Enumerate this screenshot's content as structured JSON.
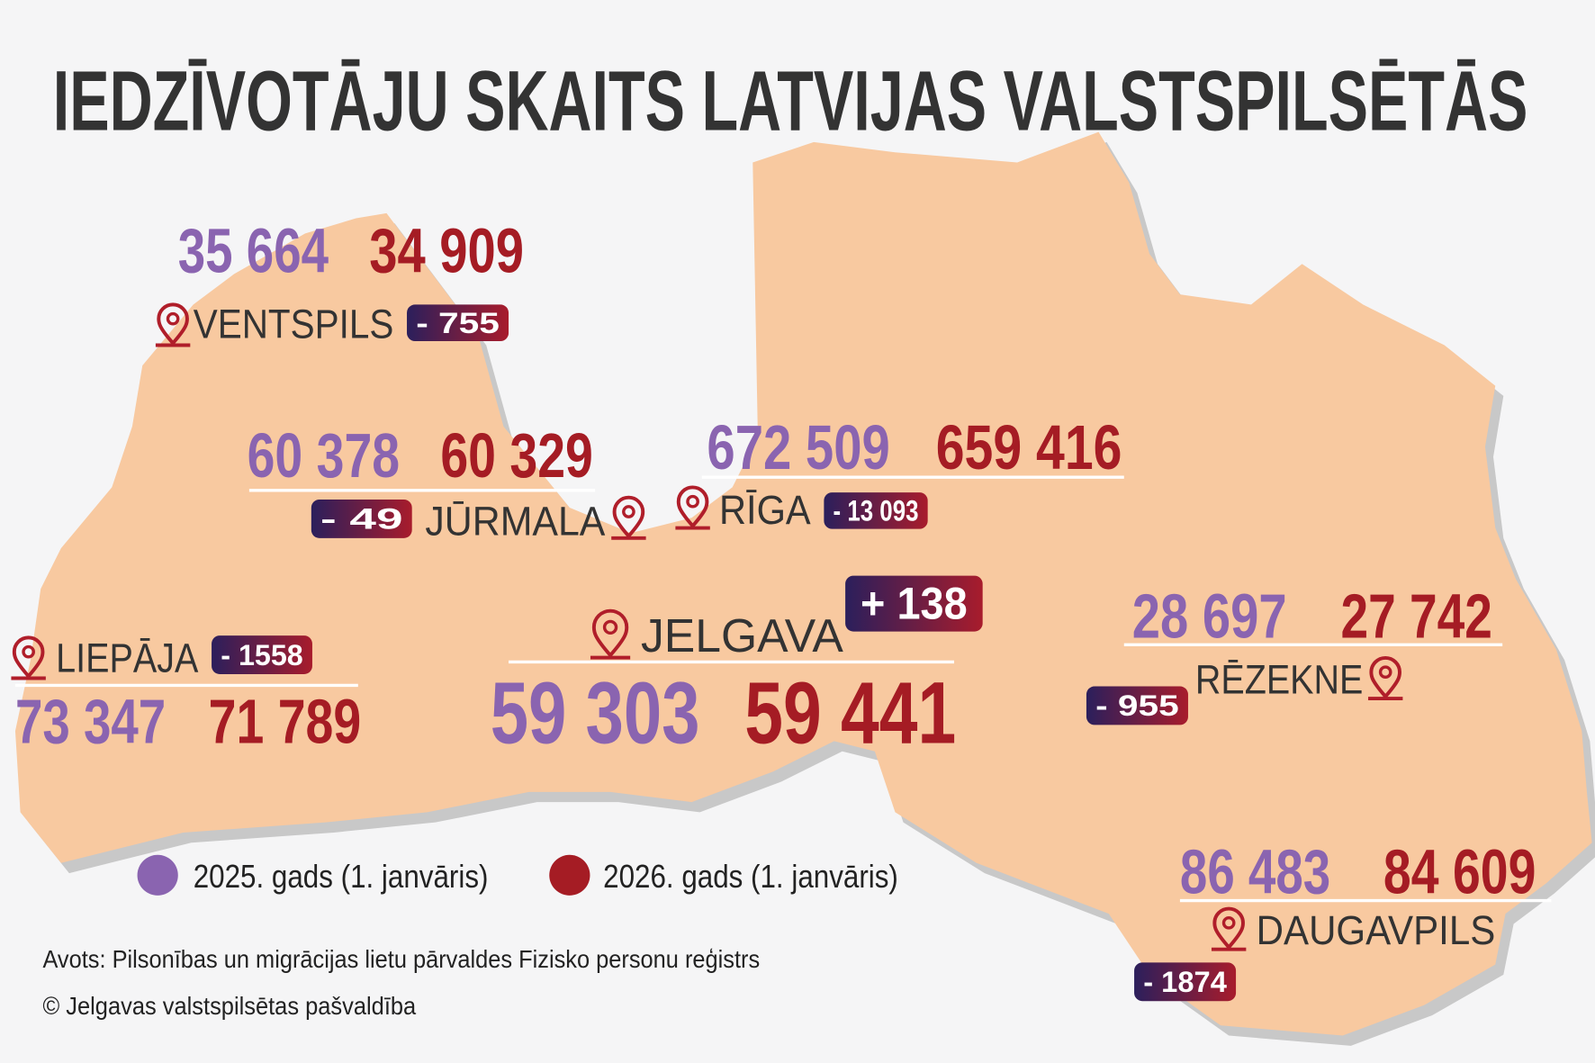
{
  "header": {
    "title": "IEDZĪVOTĀJU SKAITS LATVIJAS VALSTSPILSĒTĀS"
  },
  "cities": [
    {
      "name": "VENTSPILS",
      "pop_2025": "35 664",
      "pop_2026": "34 909",
      "change": "- 755"
    },
    {
      "name": "JŪRMALA",
      "pop_2025": "60 378",
      "pop_2026": "60 329",
      "change": "- 49"
    },
    {
      "name": "RĪGA",
      "pop_2025": "672 509",
      "pop_2026": "659 416",
      "change": "- 13 093"
    },
    {
      "name": "JELGAVA",
      "pop_2025": "59 303",
      "pop_2026": "59 441",
      "change": "+ 138"
    },
    {
      "name": "LIEPĀJA",
      "pop_2025": "73 347",
      "pop_2026": "71 789",
      "change": "- 1558"
    },
    {
      "name": "RĒZEKNE",
      "pop_2025": "28 697",
      "pop_2026": "27 742",
      "change": "- 955"
    },
    {
      "name": "DAUGAVPILS",
      "pop_2025": "86 483",
      "pop_2026": "84 609",
      "change": "- 1874"
    }
  ],
  "legend": {
    "items": [
      "2025. gads (1. janvāris)",
      "2026. gads (1. janvāris)"
    ]
  },
  "footer": {
    "source": "Avots: Pilsonības un migrācijas lietu pārvaldes Fizisko personu reģistrs",
    "copyright": "© Jelgavas valstspilsētas pašvaldība"
  }
}
